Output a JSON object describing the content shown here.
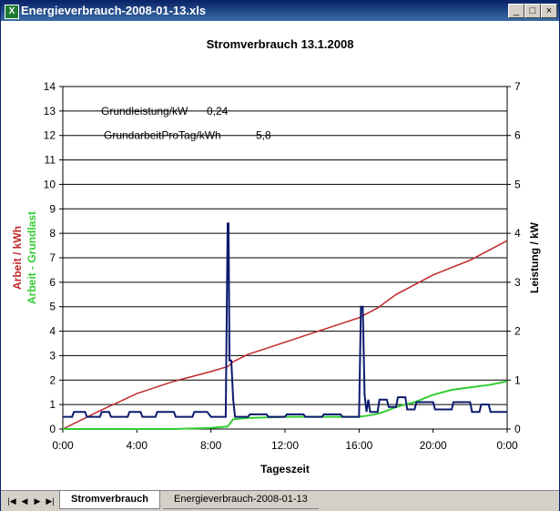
{
  "window": {
    "title": "Energieverbrauch-2008-01-13.xls",
    "app_icon": "excel-icon"
  },
  "controls": {
    "minimize": "_",
    "maximize": "□",
    "close": "×"
  },
  "tabs": [
    {
      "label": "Stromverbrauch",
      "active": true
    },
    {
      "label": "Energieverbrauch-2008-01-13",
      "active": false
    }
  ],
  "nav": [
    "|◀",
    "◀",
    "▶",
    "▶|"
  ],
  "colors": {
    "arbeit": "#c0282a",
    "grundlast": "#33cc33",
    "leistung": "#0b1a6e"
  },
  "chart_data": {
    "type": "line",
    "title": "Stromverbrauch 13.1.2008",
    "xlabel": "Tageszeit",
    "ylabel_left": [
      "Arbeit / kWh",
      "Arbeit - Grundlast"
    ],
    "ylabel_right": "Leistung / kW",
    "x_ticks": [
      "0:00",
      "4:00",
      "8:00",
      "12:00",
      "16:00",
      "20:00",
      "0:00"
    ],
    "xlim_hours": [
      0,
      24
    ],
    "ylim_left": [
      0,
      14
    ],
    "ylim_right": [
      0,
      7
    ],
    "grid": true,
    "annotations": [
      {
        "label": "Grundleistung/kW",
        "value": "0,24"
      },
      {
        "label": "GrundarbeitProTag/kWh",
        "value": "5,8"
      }
    ],
    "series": [
      {
        "name": "Arbeit / kWh",
        "axis": "left",
        "x_hours": [
          0,
          2,
          4,
          6,
          8,
          8.9,
          9.2,
          10,
          12,
          14,
          16,
          17,
          18,
          20,
          21,
          22,
          24
        ],
        "y": [
          0,
          0.75,
          1.45,
          1.95,
          2.35,
          2.55,
          2.75,
          3.05,
          3.55,
          4.05,
          4.55,
          4.95,
          5.5,
          6.3,
          6.6,
          6.9,
          7.7
        ]
      },
      {
        "name": "Arbeit - Grundlast",
        "axis": "left",
        "x_hours": [
          0,
          2,
          4,
          6,
          8,
          8.9,
          9.2,
          10,
          12,
          14,
          16,
          16.5,
          17,
          17.5,
          18,
          19,
          20,
          21,
          22,
          23,
          24
        ],
        "y": [
          0,
          0,
          0,
          0,
          0.05,
          0.1,
          0.4,
          0.45,
          0.5,
          0.5,
          0.5,
          0.55,
          0.62,
          0.75,
          0.9,
          1.1,
          1.4,
          1.6,
          1.7,
          1.8,
          1.95
        ]
      },
      {
        "name": "Leistung / kW",
        "axis": "right",
        "x_hours": [
          0,
          0.5,
          0.6,
          1.2,
          1.3,
          2.0,
          2.1,
          2.5,
          2.6,
          3.5,
          3.6,
          4.2,
          4.3,
          5.0,
          5.1,
          6.0,
          6.1,
          7.0,
          7.1,
          7.8,
          8.0,
          8.8,
          8.9,
          8.95,
          9.0,
          9.1,
          9.2,
          9.3,
          10.0,
          10.1,
          11.0,
          11.1,
          12.0,
          12.1,
          13.0,
          13.1,
          14.0,
          14.1,
          15.0,
          15.1,
          16.0,
          16.1,
          16.2,
          16.3,
          16.4,
          16.5,
          16.6,
          17.0,
          17.1,
          17.5,
          17.6,
          18.0,
          18.1,
          18.5,
          18.6,
          19.0,
          19.1,
          20.0,
          20.1,
          21.0,
          21.1,
          22.0,
          22.1,
          22.5,
          22.6,
          23.0,
          23.1,
          24.0
        ],
        "y": [
          0.25,
          0.25,
          0.35,
          0.35,
          0.25,
          0.25,
          0.35,
          0.35,
          0.25,
          0.25,
          0.35,
          0.35,
          0.25,
          0.25,
          0.35,
          0.35,
          0.25,
          0.25,
          0.35,
          0.35,
          0.25,
          0.25,
          4.2,
          4.2,
          1.4,
          1.4,
          0.6,
          0.25,
          0.25,
          0.3,
          0.3,
          0.25,
          0.25,
          0.3,
          0.3,
          0.25,
          0.25,
          0.3,
          0.3,
          0.25,
          0.25,
          2.5,
          2.5,
          0.7,
          0.35,
          0.6,
          0.35,
          0.35,
          0.6,
          0.6,
          0.45,
          0.45,
          0.65,
          0.65,
          0.4,
          0.4,
          0.55,
          0.55,
          0.4,
          0.4,
          0.55,
          0.55,
          0.35,
          0.35,
          0.5,
          0.5,
          0.35,
          0.35
        ]
      }
    ]
  }
}
